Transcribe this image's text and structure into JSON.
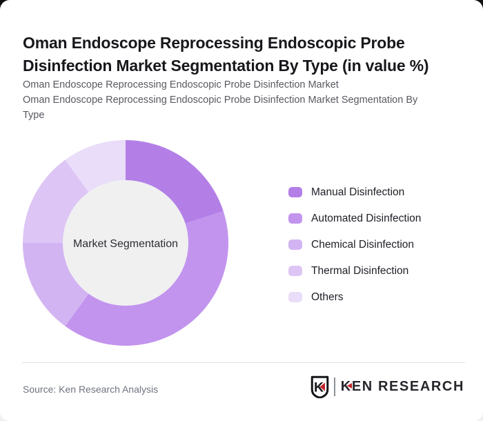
{
  "header": {
    "title": "Oman Endoscope Reprocessing Endoscopic Probe Disinfection Market Segmentation By Type (in value %)",
    "subtitle_line1": "Oman Endoscope Reprocessing Endoscopic Probe Disinfection Market",
    "subtitle_line2": "Oman Endoscope Reprocessing Endoscopic Probe Disinfection Market Segmentation By Type"
  },
  "chart_data": {
    "type": "pie",
    "donut": true,
    "title": "Oman Endoscope Reprocessing Endoscopic Probe Disinfection Market Segmentation By Type (in value %)",
    "center_label": "Market Segmentation",
    "unit": "value %",
    "categories": [
      "Manual Disinfection",
      "Automated Disinfection",
      "Chemical Disinfection",
      "Thermal Disinfection",
      "Others"
    ],
    "values": [
      20,
      40,
      15,
      15,
      10
    ],
    "colors": [
      "#b37fe7",
      "#c294ee",
      "#d3b4f2",
      "#ddc6f5",
      "#eaddf9"
    ],
    "start_angle_deg": 0,
    "direction": "clockwise",
    "legend_position": "right",
    "hole_color": "#f0f0f1"
  },
  "footer": {
    "source": "Source: Ken Research Analysis",
    "brand_k": "K",
    "brand_rest": "EN RESEARCH",
    "brand_red": "#c42127"
  }
}
